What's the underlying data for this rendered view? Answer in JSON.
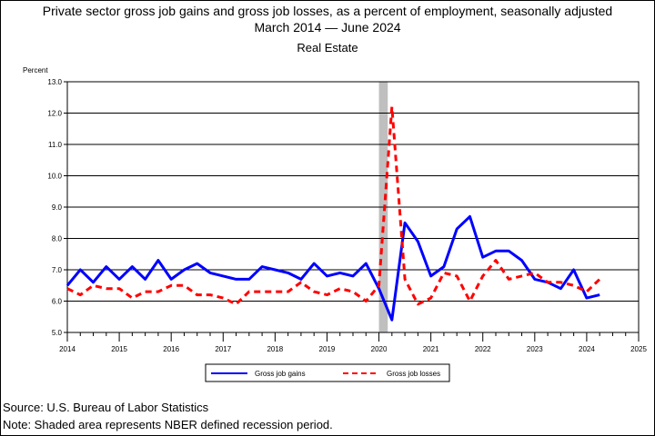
{
  "header": {
    "title": "Private sector gross job gains and gross job losses, as a percent of employment, seasonally adjusted",
    "period_start": "March 2014",
    "period_end": "June 2024",
    "subtitle": "Real Estate"
  },
  "footer": {
    "source": "Source: U.S. Bureau of Labor Statistics",
    "note": "Note: Shaded area represents NBER defined recession period."
  },
  "colors": {
    "gains": "#0000ff",
    "losses": "#ff0000",
    "recession": "#bfbfbf"
  },
  "chart_data": {
    "type": "line",
    "ylabel": "Percent",
    "ylim": [
      5.0,
      13.0
    ],
    "yticks": [
      "5.0",
      "6.0",
      "7.0",
      "8.0",
      "9.0",
      "10.0",
      "11.0",
      "12.0",
      "13.0"
    ],
    "xlim": [
      2014,
      2025
    ],
    "xticks": [
      "2014",
      "2015",
      "2016",
      "2017",
      "2018",
      "2019",
      "2020",
      "2021",
      "2022",
      "2023",
      "2024",
      "2025"
    ],
    "grid": "horizontal",
    "legend": "bottom",
    "recession": [
      2020.0,
      2020.17
    ],
    "series": [
      {
        "name": "Gross job gains",
        "style": "solid",
        "x": [
          2014.0,
          2014.25,
          2014.5,
          2014.75,
          2015.0,
          2015.25,
          2015.5,
          2015.75,
          2016.0,
          2016.25,
          2016.5,
          2016.75,
          2017.0,
          2017.25,
          2017.5,
          2017.75,
          2018.0,
          2018.25,
          2018.5,
          2018.75,
          2019.0,
          2019.25,
          2019.5,
          2019.75,
          2020.0,
          2020.25,
          2020.5,
          2020.75,
          2021.0,
          2021.25,
          2021.5,
          2021.75,
          2022.0,
          2022.25,
          2022.5,
          2022.75,
          2023.0,
          2023.25,
          2023.5,
          2023.75,
          2024.0,
          2024.25
        ],
        "values": [
          6.5,
          7.0,
          6.6,
          7.1,
          6.7,
          7.1,
          6.7,
          7.3,
          6.7,
          7.0,
          7.2,
          6.9,
          6.8,
          6.7,
          6.7,
          7.1,
          7.0,
          6.9,
          6.7,
          7.2,
          6.8,
          6.9,
          6.8,
          7.2,
          6.4,
          5.4,
          8.5,
          7.9,
          6.8,
          7.1,
          8.3,
          8.7,
          7.4,
          7.6,
          7.6,
          7.3,
          6.7,
          6.6,
          6.4,
          7.0,
          6.1,
          6.2
        ]
      },
      {
        "name": "Gross job losses",
        "style": "dashed",
        "x": [
          2014.0,
          2014.25,
          2014.5,
          2014.75,
          2015.0,
          2015.25,
          2015.5,
          2015.75,
          2016.0,
          2016.25,
          2016.5,
          2016.75,
          2017.0,
          2017.25,
          2017.5,
          2017.75,
          2018.0,
          2018.25,
          2018.5,
          2018.75,
          2019.0,
          2019.25,
          2019.5,
          2019.75,
          2020.0,
          2020.25,
          2020.5,
          2020.75,
          2021.0,
          2021.25,
          2021.5,
          2021.75,
          2022.0,
          2022.25,
          2022.5,
          2022.75,
          2023.0,
          2023.25,
          2023.5,
          2023.75,
          2024.0,
          2024.25
        ],
        "values": [
          6.4,
          6.2,
          6.5,
          6.4,
          6.4,
          6.1,
          6.3,
          6.3,
          6.5,
          6.5,
          6.2,
          6.2,
          6.1,
          5.9,
          6.3,
          6.3,
          6.3,
          6.3,
          6.6,
          6.3,
          6.2,
          6.4,
          6.3,
          6.0,
          6.5,
          12.2,
          6.7,
          5.9,
          6.1,
          6.9,
          6.8,
          6.0,
          6.8,
          7.3,
          6.7,
          6.8,
          6.9,
          6.6,
          6.6,
          6.5,
          6.3,
          6.7
        ]
      }
    ]
  }
}
